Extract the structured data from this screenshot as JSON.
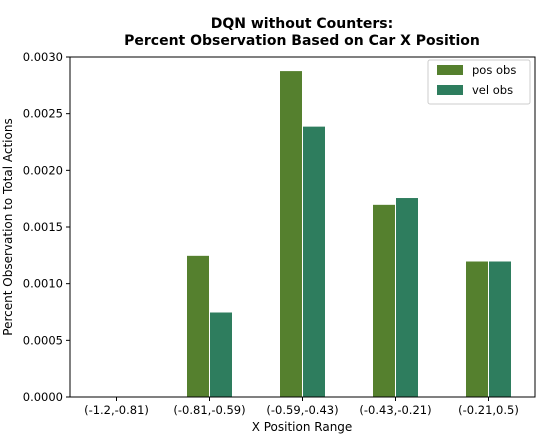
{
  "chart_data": {
    "type": "bar",
    "title_line1": "DQN without Counters:",
    "title_line2": "Percent Observation Based on Car X Position",
    "xlabel": "X Position Range",
    "ylabel": "Percent Observation to Total Actions",
    "categories": [
      "(-1.2,-0.81)",
      "(-0.81,-0.59)",
      "(-0.59,-0.43)",
      "(-0.43,-0.21)",
      "(-0.21,0.5)"
    ],
    "series": [
      {
        "name": "pos obs",
        "color": "#55802e",
        "values": [
          0.0,
          0.00125,
          0.00288,
          0.0017,
          0.0012
        ]
      },
      {
        "name": "vel obs",
        "color": "#2e7d5e",
        "values": [
          0.0,
          0.00075,
          0.00239,
          0.00176,
          0.0012
        ]
      }
    ],
    "ylim": [
      0,
      0.003
    ],
    "yticks": [
      "0.0000",
      "0.0005",
      "0.0010",
      "0.0015",
      "0.0020",
      "0.0025",
      "0.0030"
    ],
    "legend_position": "top-right",
    "grid": false
  }
}
